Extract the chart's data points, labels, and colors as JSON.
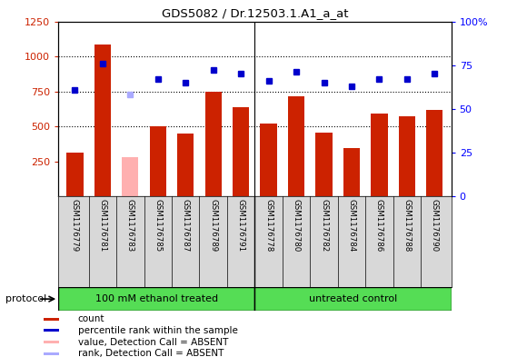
{
  "title": "GDS5082 / Dr.12503.1.A1_a_at",
  "samples": [
    "GSM1176779",
    "GSM1176781",
    "GSM1176783",
    "GSM1176785",
    "GSM1176787",
    "GSM1176789",
    "GSM1176791",
    "GSM1176778",
    "GSM1176780",
    "GSM1176782",
    "GSM1176784",
    "GSM1176786",
    "GSM1176788",
    "GSM1176790"
  ],
  "counts": [
    310,
    1085,
    null,
    500,
    450,
    750,
    640,
    520,
    715,
    455,
    345,
    590,
    575,
    615
  ],
  "counts_absent": [
    null,
    null,
    280,
    null,
    null,
    null,
    null,
    null,
    null,
    null,
    null,
    null,
    null,
    null
  ],
  "percentile_ranks_pct": [
    61,
    76,
    null,
    67,
    65,
    72,
    70,
    66,
    71,
    65,
    63,
    67,
    67,
    70
  ],
  "percentile_ranks_pct_absent": [
    null,
    null,
    58,
    null,
    null,
    null,
    null,
    null,
    null,
    null,
    null,
    null,
    null,
    null
  ],
  "bar_color": "#CC2200",
  "bar_color_absent": "#FFB0B0",
  "dot_color": "#0000CC",
  "dot_color_absent": "#AAAAFF",
  "ylim_left": [
    0,
    1250
  ],
  "ylim_right": [
    0,
    100
  ],
  "yticks_left": [
    250,
    500,
    750,
    1000,
    1250
  ],
  "ytick_labels_left": [
    "250",
    "500",
    "750",
    "1000",
    "1250"
  ],
  "yticks_right": [
    0,
    25,
    50,
    75,
    100
  ],
  "ytick_labels_right": [
    "0",
    "25",
    "50",
    "75",
    "100%"
  ],
  "protocol_groups": [
    {
      "label": "100 mM ethanol treated",
      "start": 0,
      "end": 7
    },
    {
      "label": "untreated control",
      "start": 7,
      "end": 14
    }
  ],
  "legend_items": [
    {
      "label": "count",
      "color": "#CC2200"
    },
    {
      "label": "percentile rank within the sample",
      "color": "#0000CC"
    },
    {
      "label": "value, Detection Call = ABSENT",
      "color": "#FFB0B0"
    },
    {
      "label": "rank, Detection Call = ABSENT",
      "color": "#AAAAFF"
    }
  ],
  "protocol_label": "protocol",
  "bg_color": "#D8D8D8",
  "plot_bg": "#FFFFFF",
  "green_color": "#55DD55"
}
